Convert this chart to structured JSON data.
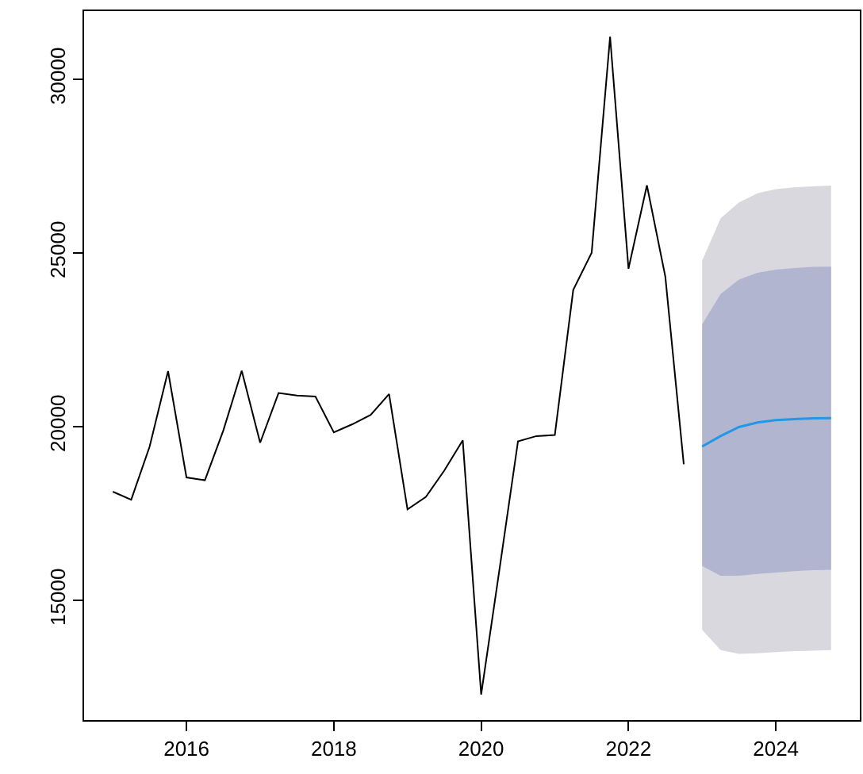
{
  "chart_data": {
    "type": "line",
    "xlim": [
      2014.61,
      2025.14
    ],
    "ylim": [
      11544,
      31956
    ],
    "xticks": [
      2016,
      2018,
      2020,
      2022,
      2024
    ],
    "yticks": [
      15000,
      20000,
      25000,
      30000
    ],
    "marker": "none",
    "line_style": "solid",
    "series": [
      {
        "color": "#000000",
        "x": [
          2015,
          2015.25,
          2015.5,
          2015.75,
          2016,
          2016.25,
          2016.5,
          2016.75,
          2017,
          2017.25,
          2017.5,
          2017.75,
          2018,
          2018.25,
          2018.5,
          2018.75,
          2019,
          2019.25,
          2019.5,
          2019.75,
          2020,
          2020.25,
          2020.5,
          2020.75,
          2021,
          2021.25,
          2021.5,
          2021.75,
          2022,
          2022.25,
          2022.5,
          2022.75
        ],
        "values": [
          18120,
          17890,
          19420,
          21590,
          18530,
          18450,
          19880,
          21600,
          19530,
          20960,
          20890,
          20860,
          19830,
          20060,
          20330,
          20930,
          17610,
          17970,
          18730,
          19600,
          12280,
          15900,
          19570,
          19720,
          19750,
          23930,
          25000,
          31220,
          24540,
          26940,
          24310,
          18910
        ]
      },
      {
        "color": "#d9d8de",
        "x": [
          2023,
          2023.25,
          2023.5,
          2023.75,
          2024,
          2024.25,
          2024.5,
          2024.75
        ],
        "values": [
          null,
          null,
          null,
          null,
          null,
          null,
          null,
          null
        ],
        "lower": [
          14140,
          13560,
          13450,
          13470,
          13500,
          13530,
          13540,
          13560
        ],
        "upper": [
          24770,
          25990,
          26450,
          26710,
          26830,
          26880,
          26910,
          26930
        ]
      },
      {
        "color": "#b1b5cf",
        "x": [
          2023,
          2023.25,
          2023.5,
          2023.75,
          2024,
          2024.25,
          2024.5,
          2024.75
        ],
        "values": [
          null,
          null,
          null,
          null,
          null,
          null,
          null,
          null
        ],
        "lower": [
          15980,
          15700,
          15700,
          15750,
          15790,
          15830,
          15860,
          15870
        ],
        "upper": [
          22940,
          23810,
          24230,
          24420,
          24510,
          24560,
          24590,
          24600
        ]
      },
      {
        "color": "#2297e6",
        "x": [
          2023,
          2023.25,
          2023.5,
          2023.75,
          2024,
          2024.25,
          2024.5,
          2024.75
        ],
        "values": [
          19420,
          19720,
          19980,
          20110,
          20180,
          20210,
          20230,
          20240
        ]
      }
    ]
  }
}
